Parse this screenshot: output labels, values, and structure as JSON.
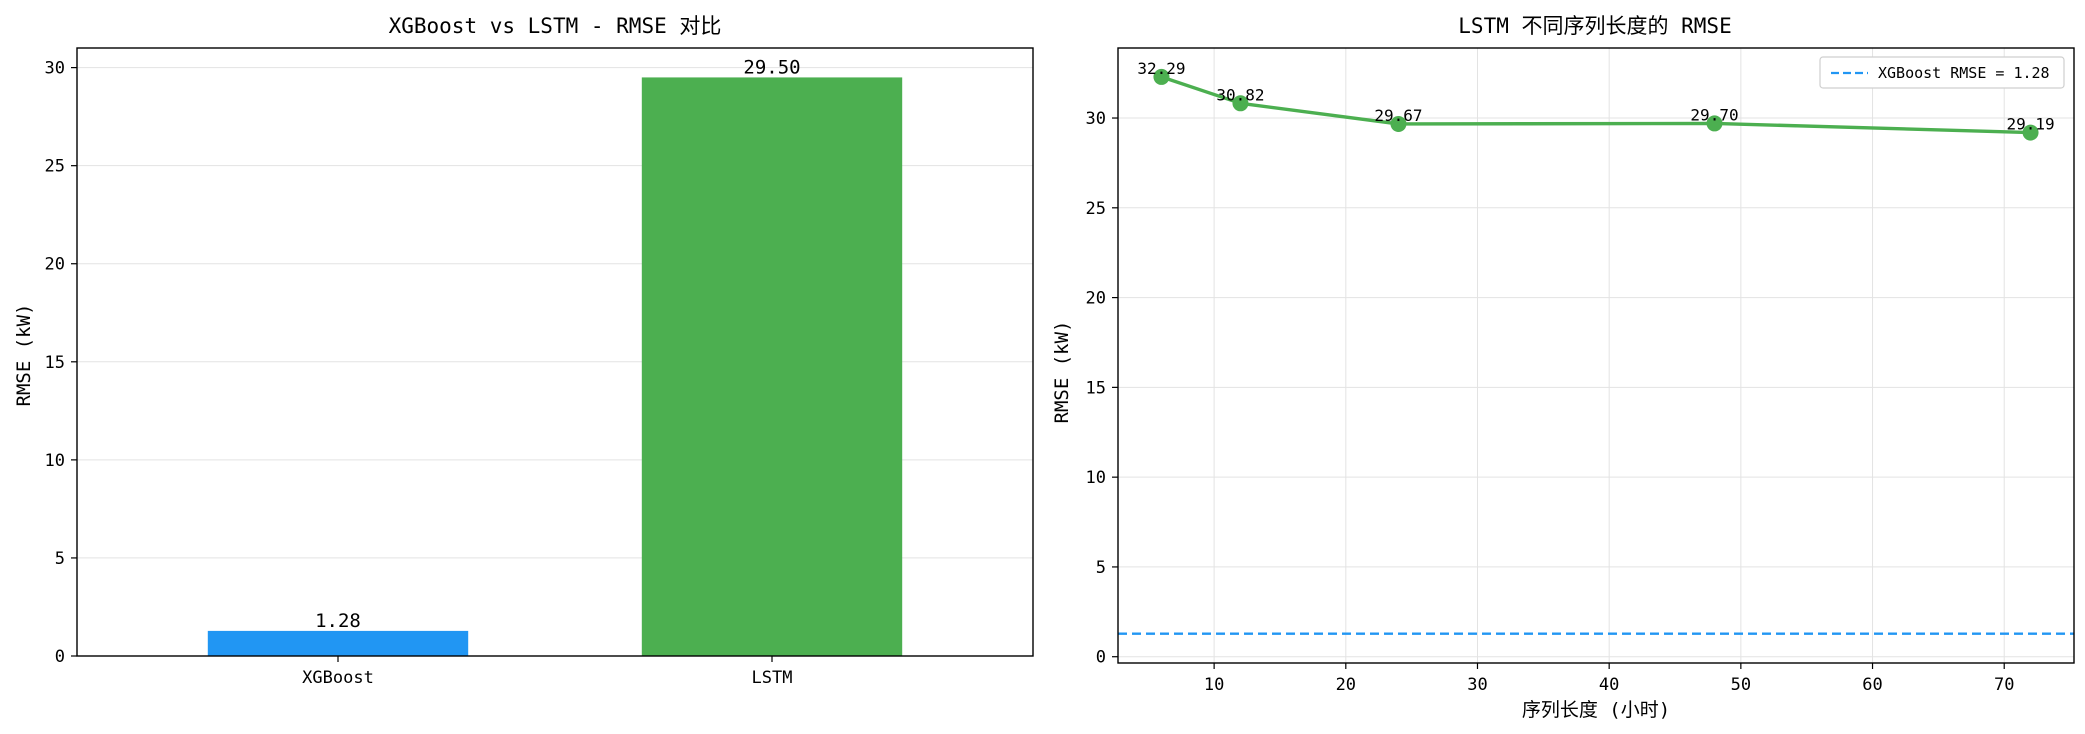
{
  "chart_data": [
    {
      "type": "bar",
      "title": "XGBoost vs LSTM - RMSE 对比",
      "xlabel": "",
      "ylabel": "RMSE (kW)",
      "categories": [
        "XGBoost",
        "LSTM"
      ],
      "values": [
        1.28,
        29.5
      ],
      "value_labels": [
        "1.28",
        "29.50"
      ],
      "colors": [
        "#2196F3",
        "#4CAF50"
      ],
      "ylim": [
        0,
        31
      ],
      "yticks": [
        0,
        5,
        10,
        15,
        20,
        25,
        30
      ],
      "grid": "y"
    },
    {
      "type": "line",
      "title": "LSTM 不同序列长度的 RMSE",
      "xlabel": "序列长度 (小时)",
      "ylabel": "RMSE (kW)",
      "x": [
        6,
        12,
        24,
        48,
        72
      ],
      "y": [
        32.29,
        30.82,
        29.67,
        29.7,
        29.19
      ],
      "point_labels": [
        "32.29",
        "30.82",
        "29.67",
        "29.70",
        "29.19"
      ],
      "line_color": "#4CAF50",
      "xlim": [
        2.7,
        75.3
      ],
      "ylim": [
        -0.35,
        33.9
      ],
      "xticks": [
        10,
        20,
        30,
        40,
        50,
        60,
        70
      ],
      "yticks": [
        0,
        5,
        10,
        15,
        20,
        25,
        30
      ],
      "grid": "both",
      "reference_line": {
        "label": "XGBoost RMSE = 1.28",
        "value": 1.28,
        "color": "#2196F3",
        "style": "dashed"
      },
      "legend": "top-right"
    }
  ]
}
